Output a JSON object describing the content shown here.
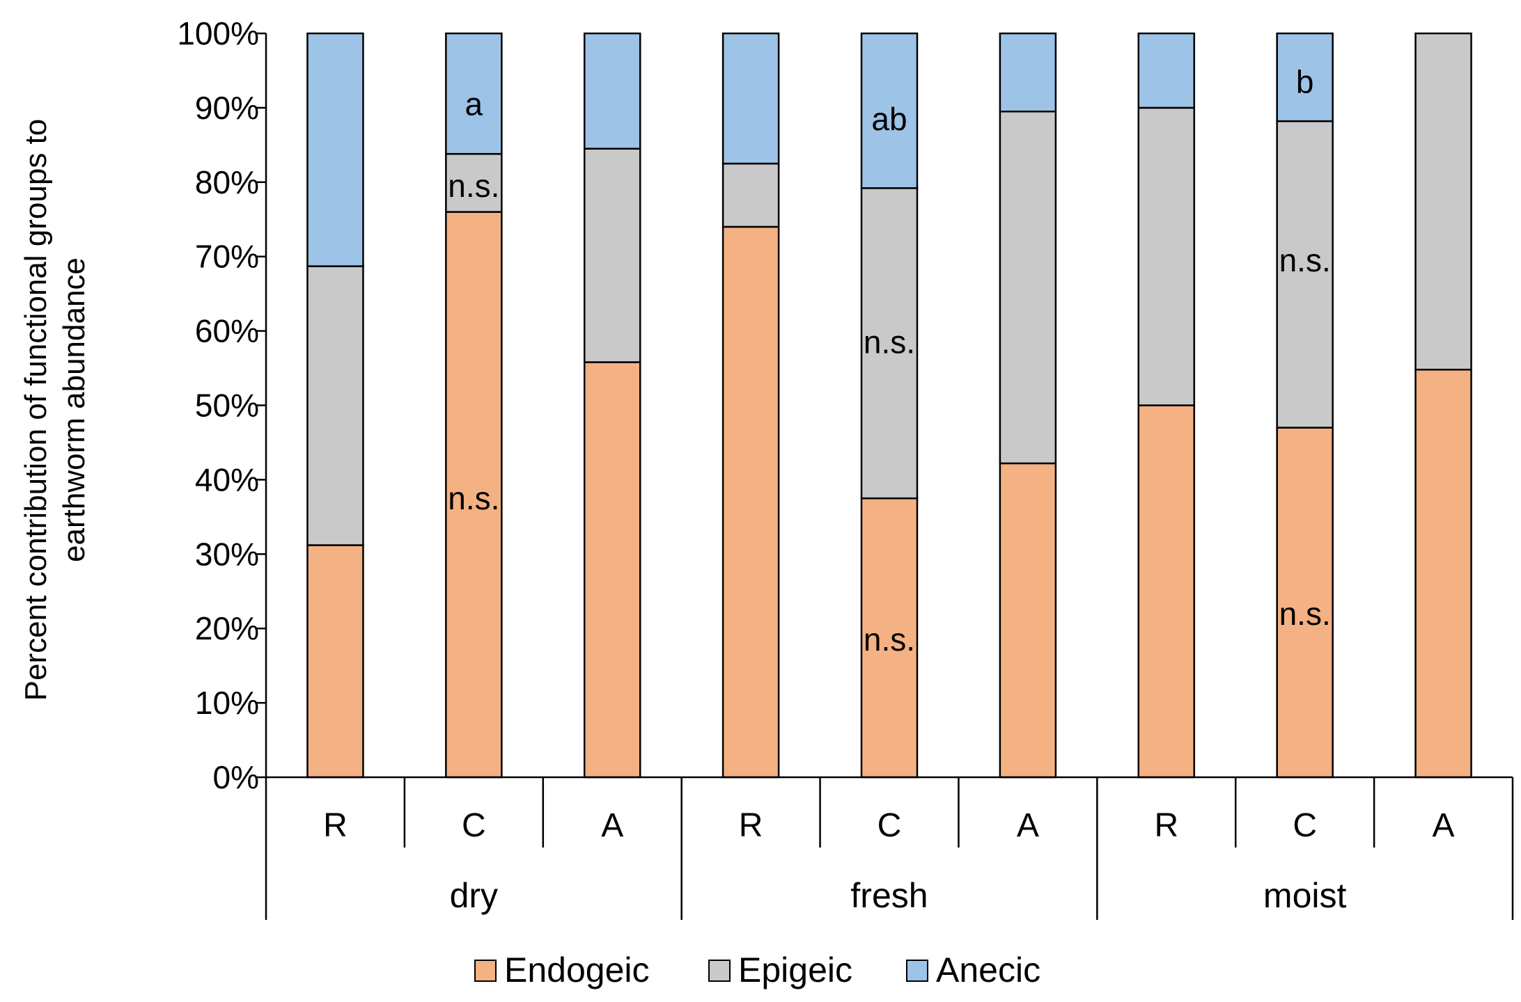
{
  "chart_data": {
    "type": "stacked-bar-100",
    "ylabel_lines": [
      "Percent contribution of functional groups to",
      "earthworm abundance"
    ],
    "ylim": [
      0,
      100
    ],
    "yticks": [
      "0%",
      "10%",
      "20%",
      "30%",
      "40%",
      "50%",
      "60%",
      "70%",
      "80%",
      "90%",
      "100%"
    ],
    "groups": [
      {
        "name": "dry",
        "categories": [
          "R",
          "C",
          "A"
        ]
      },
      {
        "name": "fresh",
        "categories": [
          "R",
          "C",
          "A"
        ]
      },
      {
        "name": "moist",
        "categories": [
          "R",
          "C",
          "A"
        ]
      }
    ],
    "series": [
      {
        "name": "Endogeic",
        "color": "#F4B183",
        "values": [
          31.2,
          76.0,
          55.8,
          74.0,
          37.5,
          42.2,
          50.0,
          47.0,
          54.8
        ]
      },
      {
        "name": "Epigeic",
        "color": "#C9C9C9",
        "values": [
          37.5,
          7.8,
          28.7,
          8.5,
          41.7,
          47.3,
          40.0,
          41.2,
          45.2
        ]
      },
      {
        "name": "Anecic",
        "color": "#9DC3E6",
        "values": [
          31.3,
          16.2,
          15.5,
          17.5,
          20.8,
          10.5,
          10.0,
          11.8,
          0.0
        ]
      }
    ],
    "annotations": [
      {
        "bar": 1,
        "y": 90.5,
        "text": "a"
      },
      {
        "bar": 4,
        "y": 88.5,
        "text": "ab"
      },
      {
        "bar": 7,
        "y": 93.5,
        "text": "b"
      },
      {
        "bar": 1,
        "y": 79.5,
        "text": "n.s."
      },
      {
        "bar": 1,
        "y": 37.5,
        "text": "n.s."
      },
      {
        "bar": 4,
        "y": 58.5,
        "text": "n.s."
      },
      {
        "bar": 4,
        "y": 18.5,
        "text": "n.s."
      },
      {
        "bar": 7,
        "y": 69.5,
        "text": "n.s."
      },
      {
        "bar": 7,
        "y": 22.0,
        "text": "n.s."
      }
    ],
    "legend": [
      "Endogeic",
      "Epigeic",
      "Anecic"
    ],
    "legend_position": "bottom"
  }
}
